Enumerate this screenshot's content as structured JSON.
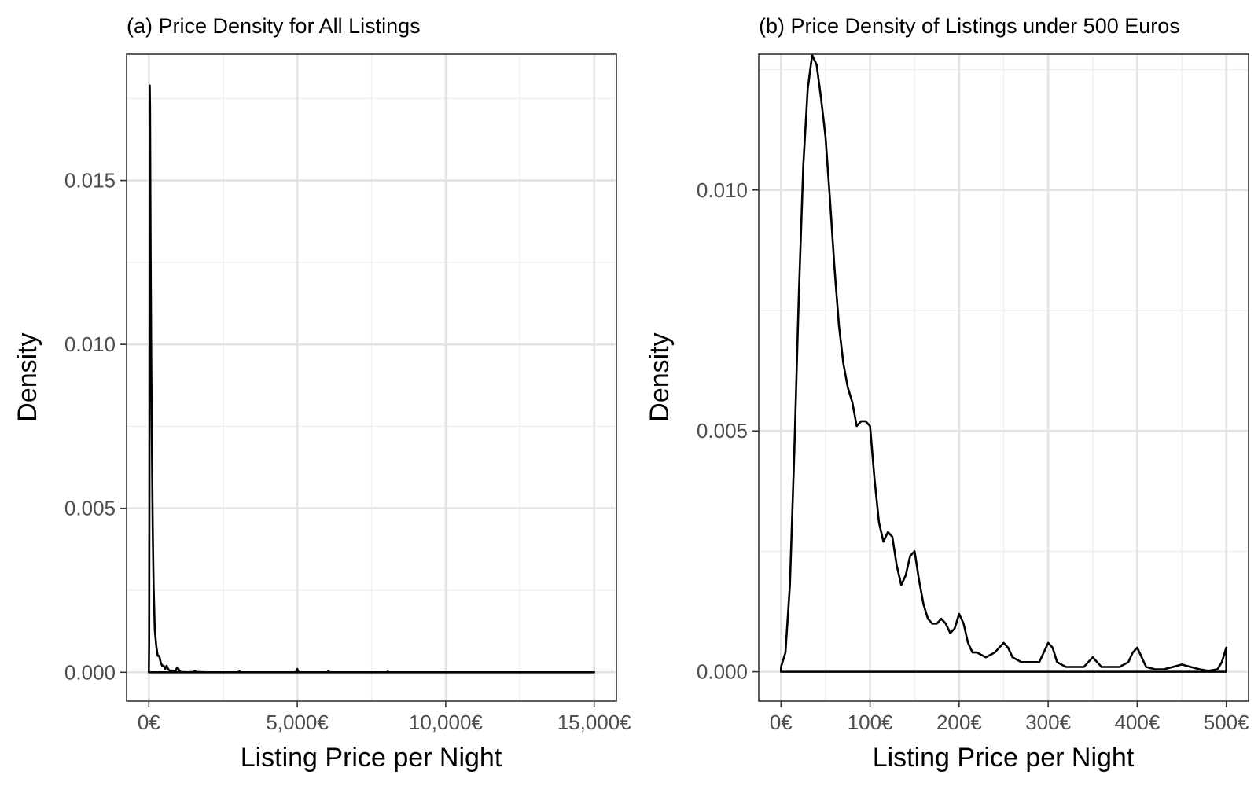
{
  "chart_data": [
    {
      "type": "line",
      "title": "(a) Price Density for All Listings",
      "xlabel": "Listing Price per Night",
      "ylabel": "Density",
      "xlim": [
        -750,
        15750
      ],
      "ylim": [
        -0.00088,
        0.01885
      ],
      "x_ticks": [
        0,
        5000,
        10000,
        15000
      ],
      "x_tick_labels": [
        "0€",
        "5,000€",
        "10,000€",
        "15,000€"
      ],
      "y_ticks": [
        0,
        0.005,
        0.01,
        0.015
      ],
      "y_tick_labels": [
        "0.000",
        "0.005",
        "0.010",
        "0.015"
      ],
      "grid": true,
      "series": [
        {
          "x": [
            0,
            10,
            20,
            30,
            40,
            60,
            80,
            100,
            130,
            160,
            200,
            250,
            300,
            350,
            400,
            450,
            500,
            550,
            600,
            650,
            700,
            800,
            900,
            950,
            1000,
            1050,
            1100,
            1300,
            1500,
            1550,
            1600,
            2000,
            2500,
            3000,
            3050,
            3100,
            4000,
            4950,
            5000,
            5050,
            5500,
            6000,
            6050,
            6100,
            8000,
            8050,
            8100,
            10000,
            12000,
            15000
          ],
          "y": [
            0.0,
            0.0009,
            0.0059,
            0.0179,
            0.0172,
            0.0128,
            0.0096,
            0.0073,
            0.0044,
            0.0026,
            0.0013,
            0.0008,
            0.0005,
            0.0005,
            0.0003,
            0.0002,
            0.0002,
            0.0001,
            0.0002,
            0.0001,
            5e-05,
            5e-05,
            3e-05,
            0.00015,
            0.0001,
            2e-05,
            1e-05,
            0.0,
            1e-05,
            4e-05,
            1e-05,
            0.0,
            0.0,
            0.0,
            3e-05,
            0.0,
            0.0,
            0.0,
            0.0001,
            0.0,
            0.0,
            0.0,
            3e-05,
            0.0,
            0.0,
            2e-05,
            0.0,
            0.0,
            0.0,
            0.0
          ]
        }
      ]
    },
    {
      "type": "line",
      "title": "(b) Price Density of Listings under 500 Euros",
      "xlabel": "Listing Price per Night",
      "ylabel": "Density",
      "xlim": [
        -25,
        525
      ],
      "ylim": [
        -0.00061,
        0.01282
      ],
      "x_ticks": [
        0,
        100,
        200,
        300,
        400,
        500
      ],
      "x_tick_labels": [
        "0€",
        "100€",
        "200€",
        "300€",
        "400€",
        "500€"
      ],
      "y_ticks": [
        0,
        0.005,
        0.01
      ],
      "y_tick_labels": [
        "0.000",
        "0.005",
        "0.010"
      ],
      "grid": true,
      "series": [
        {
          "x": [
            0,
            5,
            10,
            15,
            20,
            25,
            30,
            35,
            40,
            45,
            50,
            55,
            60,
            65,
            70,
            75,
            80,
            85,
            90,
            95,
            100,
            105,
            110,
            115,
            120,
            125,
            130,
            135,
            140,
            145,
            150,
            155,
            160,
            165,
            170,
            175,
            180,
            185,
            190,
            195,
            200,
            205,
            210,
            215,
            220,
            230,
            240,
            250,
            255,
            260,
            270,
            280,
            290,
            295,
            300,
            305,
            310,
            320,
            330,
            340,
            350,
            355,
            360,
            370,
            380,
            390,
            395,
            400,
            405,
            410,
            420,
            430,
            440,
            450,
            460,
            470,
            480,
            490,
            495,
            500
          ],
          "y": [
            0.0001,
            0.0004,
            0.0018,
            0.0046,
            0.0078,
            0.0105,
            0.0121,
            0.0128,
            0.0126,
            0.0119,
            0.0111,
            0.0098,
            0.0084,
            0.0072,
            0.0064,
            0.0059,
            0.0056,
            0.0051,
            0.0052,
            0.0052,
            0.0051,
            0.004,
            0.0031,
            0.0027,
            0.0029,
            0.0028,
            0.0022,
            0.0018,
            0.002,
            0.0024,
            0.0025,
            0.0019,
            0.0014,
            0.0011,
            0.001,
            0.001,
            0.0011,
            0.001,
            0.0008,
            0.0009,
            0.0012,
            0.001,
            0.0006,
            0.0004,
            0.0004,
            0.0003,
            0.0004,
            0.0006,
            0.0005,
            0.0003,
            0.0002,
            0.0002,
            0.0002,
            0.0004,
            0.0006,
            0.0005,
            0.0002,
            0.0001,
            0.0001,
            0.0001,
            0.0003,
            0.0002,
            0.0001,
            0.0001,
            0.0001,
            0.0002,
            0.0004,
            0.0005,
            0.0003,
            0.0001,
            5e-05,
            5e-05,
            0.0001,
            0.00015,
            0.0001,
            5e-05,
            2e-05,
            5e-05,
            0.0002,
            0.0005
          ]
        }
      ]
    }
  ]
}
